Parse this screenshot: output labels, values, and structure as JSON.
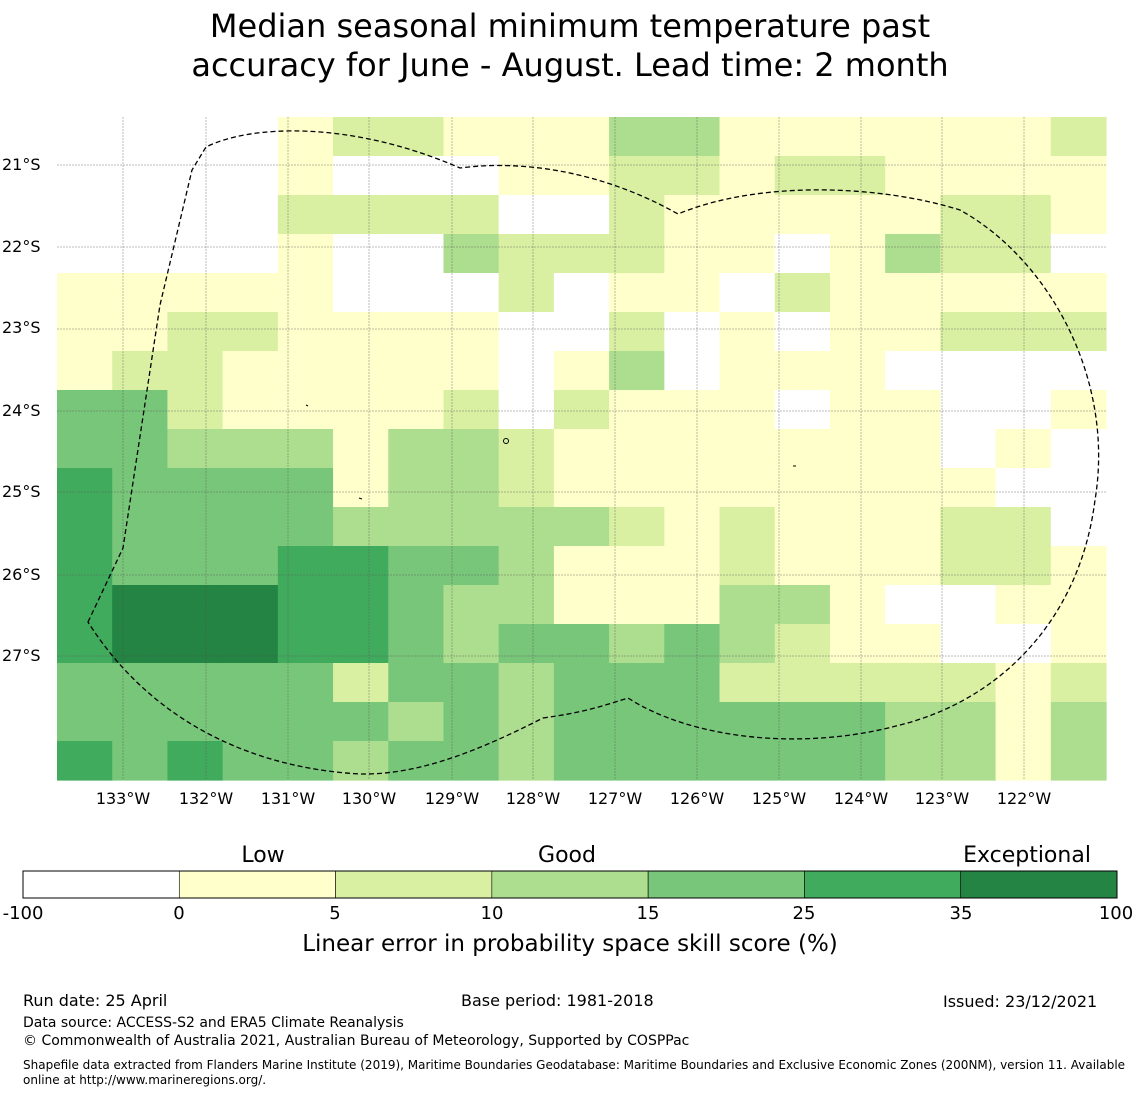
{
  "title": {
    "line1": "Median seasonal minimum temperature past",
    "line2": "accuracy for June - August. Lead time: 2 month"
  },
  "map": {
    "lat_labels": [
      "21°S",
      "22°S",
      "23°S",
      "24°S",
      "25°S",
      "26°S",
      "27°S"
    ],
    "lon_labels": [
      "133°W",
      "132°W",
      "131°W",
      "130°W",
      "129°W",
      "128°W",
      "127°W",
      "126°W",
      "125°W",
      "124°W",
      "123°W",
      "122°W"
    ],
    "category_colors": [
      "#ffffff",
      "#ffffcc",
      "#d9f0a3",
      "#addd8e",
      "#78c679",
      "#41ab5d",
      "#238443"
    ],
    "grid_categories": [
      "xxxx122111331111112",
      "xxxx100011221221111",
      "xxxx222200211111221",
      "xxxx100322211013220",
      "1111100020110211111",
      "1122111100201011222",
      "1221111101301110000",
      "4421111202111011001",
      "4433313321111111010",
      "5444413321111111100",
      "5444433333212111220",
      "5444554431112111221",
      "5666554331113310011",
      "5666554344343211001",
      "4444424434442222212",
      "4444443434444443313",
      "5454434434444443313"
    ]
  },
  "colorbar": {
    "categories": [
      "Low",
      "Good",
      "Exceptional"
    ],
    "ticks": [
      "-100",
      "0",
      "5",
      "10",
      "15",
      "25",
      "35",
      "100"
    ],
    "label": "Linear error in probability space skill score (%)"
  },
  "footer": {
    "run_date": "Run date: 25 April",
    "base_period": "Base period: 1981-2018",
    "issued": "Issued: 23/12/2021",
    "data_source": "Data source: ACCESS-S2 and ERA5 Climate Reanalysis",
    "copyright": "© Commonwealth of Australia 2021, Australian Bureau of Meteorology, Supported by COSPPac",
    "shapefile_line1": "Shapefile data extracted from Flanders Marine Institute (2019), Maritime Boundaries Geodatabase: Maritime Boundaries and Exclusive Economic Zones (200NM), version 11. Available",
    "shapefile_line2": "online at http://www.marineregions.org/."
  }
}
